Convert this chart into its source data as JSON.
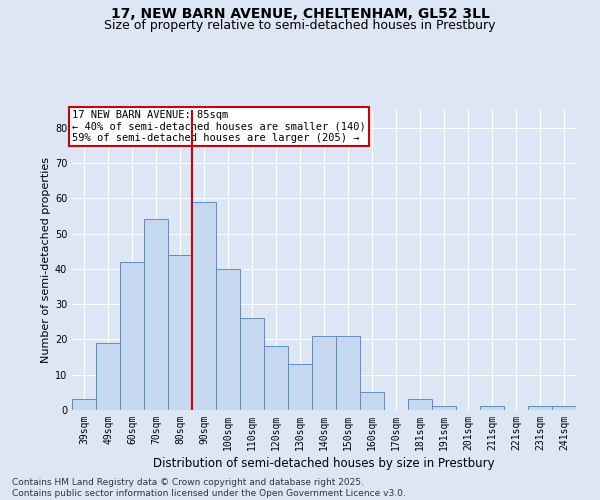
{
  "title_line1": "17, NEW BARN AVENUE, CHELTENHAM, GL52 3LL",
  "title_line2": "Size of property relative to semi-detached houses in Prestbury",
  "xlabel": "Distribution of semi-detached houses by size in Prestbury",
  "ylabel": "Number of semi-detached properties",
  "annotation_title": "17 NEW BARN AVENUE: 85sqm",
  "annotation_line2": "← 40% of semi-detached houses are smaller (140)",
  "annotation_line3": "59% of semi-detached houses are larger (205) →",
  "footer_line1": "Contains HM Land Registry data © Crown copyright and database right 2025.",
  "footer_line2": "Contains public sector information licensed under the Open Government Licence v3.0.",
  "categories": [
    "39sqm",
    "49sqm",
    "60sqm",
    "70sqm",
    "80sqm",
    "90sqm",
    "100sqm",
    "110sqm",
    "120sqm",
    "130sqm",
    "140sqm",
    "150sqm",
    "160sqm",
    "170sqm",
    "181sqm",
    "191sqm",
    "201sqm",
    "211sqm",
    "221sqm",
    "231sqm",
    "241sqm"
  ],
  "values": [
    3,
    19,
    42,
    54,
    44,
    59,
    40,
    26,
    18,
    13,
    21,
    21,
    5,
    0,
    3,
    1,
    0,
    1,
    0,
    1,
    1
  ],
  "bar_color": "#c5d8f0",
  "bar_edge_color": "#5b8dc8",
  "red_line_x": 4.5,
  "red_line_color": "#cc0000",
  "ylim": [
    0,
    85
  ],
  "yticks": [
    0,
    10,
    20,
    30,
    40,
    50,
    60,
    70,
    80
  ],
  "background_color": "#dce6f5",
  "plot_bg_color": "#dce6f5",
  "annotation_box_color": "#ffffff",
  "annotation_box_edge": "#cc0000",
  "grid_color": "#ffffff",
  "title_fontsize": 10,
  "subtitle_fontsize": 9,
  "tick_fontsize": 7,
  "ylabel_fontsize": 8,
  "xlabel_fontsize": 8.5,
  "footer_fontsize": 6.5,
  "annotation_fontsize": 7.5
}
